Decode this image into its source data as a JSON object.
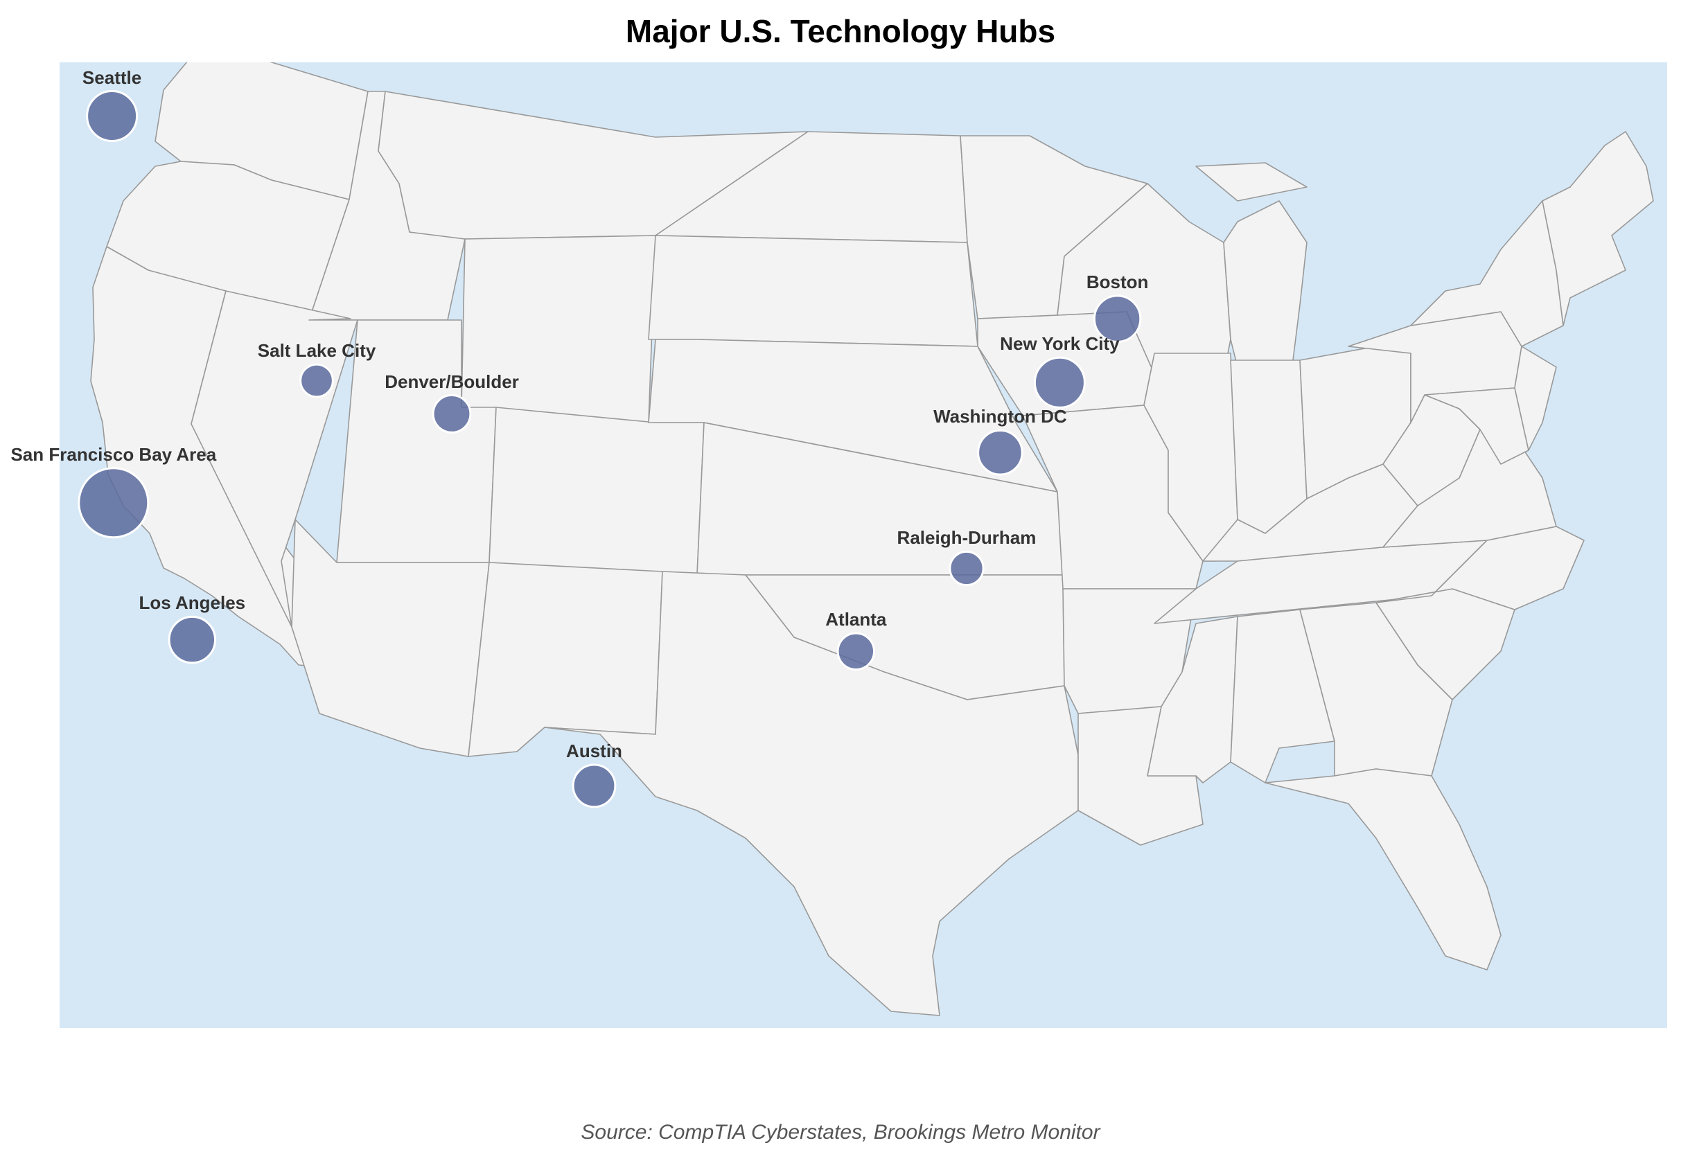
{
  "title": "Major U.S. Technology Hubs",
  "source": "Source: CompTIA Cyberstates, Brookings Metro Monitor",
  "colors": {
    "ocean": "#d6e8f6",
    "land": "#f3f3f3",
    "border": "#999999",
    "marker": "#5a6a9c",
    "marker_edge": "#ffffff",
    "label": "#333333"
  },
  "hubs": [
    {
      "name": "Seattle",
      "lon": -122.33,
      "lat": 47.61,
      "size": 3
    },
    {
      "name": "San Francisco Bay Area",
      "lon": -122.25,
      "lat": 37.6,
      "size": 5
    },
    {
      "name": "Los Angeles",
      "lon": -118.24,
      "lat": 34.05,
      "size": 2.6
    },
    {
      "name": "Salt Lake City",
      "lon": -111.89,
      "lat": 40.76,
      "size": 1.2
    },
    {
      "name": "Denver/Boulder",
      "lon": -105.0,
      "lat": 39.9,
      "size": 1.7
    },
    {
      "name": "Austin",
      "lon": -97.74,
      "lat": 30.27,
      "size": 2.2
    },
    {
      "name": "Atlanta",
      "lon": -84.39,
      "lat": 33.75,
      "size": 1.6
    },
    {
      "name": "Raleigh-Durham",
      "lon": -78.75,
      "lat": 35.9,
      "size": 1.3
    },
    {
      "name": "Washington DC",
      "lon": -77.04,
      "lat": 38.9,
      "size": 2.4
    },
    {
      "name": "New York City",
      "lon": -74.0,
      "lat": 40.71,
      "size": 3
    },
    {
      "name": "Boston",
      "lon": -71.06,
      "lat": 42.36,
      "size": 2.6
    }
  ]
}
